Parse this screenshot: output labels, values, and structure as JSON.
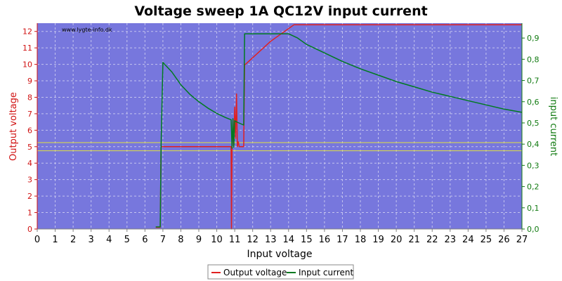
{
  "chart_data": {
    "type": "line",
    "title": "Voltage sweep 1A QC12V input current",
    "xlabel": "Input voltage",
    "ylabel_left": "Output voltage",
    "ylabel_right": "input current",
    "watermark": "www.lygte-info.dk",
    "x_ticks": [
      "0",
      "1",
      "2",
      "3",
      "4",
      "5",
      "6",
      "7",
      "8",
      "9",
      "10",
      "11",
      "12",
      "13",
      "14",
      "15",
      "16",
      "17",
      "18",
      "19",
      "20",
      "21",
      "22",
      "23",
      "24",
      "25",
      "26",
      "27"
    ],
    "y_left_ticks": [
      "0",
      "1",
      "2",
      "3",
      "4",
      "5",
      "6",
      "7",
      "8",
      "9",
      "10",
      "11",
      "12"
    ],
    "y_right_ticks": [
      "0,0",
      "0,1",
      "0,2",
      "0,3",
      "0,4",
      "0,5",
      "0,6",
      "0,7",
      "0,8",
      "0,9"
    ],
    "xlim": [
      0,
      27
    ],
    "ylim_left": [
      0,
      12.5
    ],
    "ylim_right": [
      0,
      0.97
    ],
    "reference_lines_left": [
      4.75,
      5.25
    ],
    "grid": true,
    "legend_position": "bottom-center",
    "colors": {
      "plot_bg": "#7777dd",
      "grid": "#c4c4ee",
      "output_voltage": "#e02020",
      "input_current": "#007a20",
      "reference": "#e0e040",
      "left_axis": "#d01010",
      "right_axis": "#107a10"
    },
    "series": [
      {
        "name": "Output voltage",
        "axis": "left",
        "x": [
          6.6,
          6.85,
          6.9,
          6.95,
          10.0,
          10.8,
          10.82,
          10.85,
          10.9,
          10.95,
          11.0,
          11.05,
          11.1,
          11.15,
          11.2,
          11.25,
          11.3,
          11.5,
          11.55,
          11.6,
          13.0,
          14.3,
          15.0,
          20.0,
          27.0
        ],
        "y": [
          0.1,
          0.1,
          5.0,
          5.0,
          5.0,
          5.0,
          0.0,
          4.8,
          6.5,
          5.0,
          7.4,
          5.5,
          8.2,
          5.0,
          5.3,
          5.0,
          5.0,
          5.0,
          10.0,
          10.0,
          11.4,
          12.4,
          12.4,
          12.4,
          12.4
        ]
      },
      {
        "name": "Input current",
        "axis": "right",
        "x": [
          6.6,
          6.8,
          6.85,
          6.9,
          7.0,
          7.5,
          8.0,
          8.5,
          9.0,
          9.5,
          10.0,
          10.5,
          10.8,
          10.85,
          10.9,
          10.95,
          11.0,
          11.1,
          11.5,
          11.55,
          11.6,
          12.0,
          13.0,
          14.0,
          14.5,
          15.0,
          16.0,
          17.0,
          18.0,
          19.0,
          20.0,
          21.0,
          22.0,
          23.0,
          24.0,
          25.0,
          26.0,
          27.0
        ],
        "y": [
          0.01,
          0.01,
          0.01,
          0.39,
          0.785,
          0.74,
          0.68,
          0.635,
          0.6,
          0.57,
          0.545,
          0.525,
          0.515,
          0.38,
          0.52,
          0.385,
          0.51,
          0.505,
          0.49,
          0.92,
          0.92,
          0.92,
          0.92,
          0.92,
          0.9,
          0.87,
          0.83,
          0.79,
          0.755,
          0.725,
          0.695,
          0.67,
          0.645,
          0.625,
          0.605,
          0.585,
          0.565,
          0.55
        ]
      }
    ]
  }
}
